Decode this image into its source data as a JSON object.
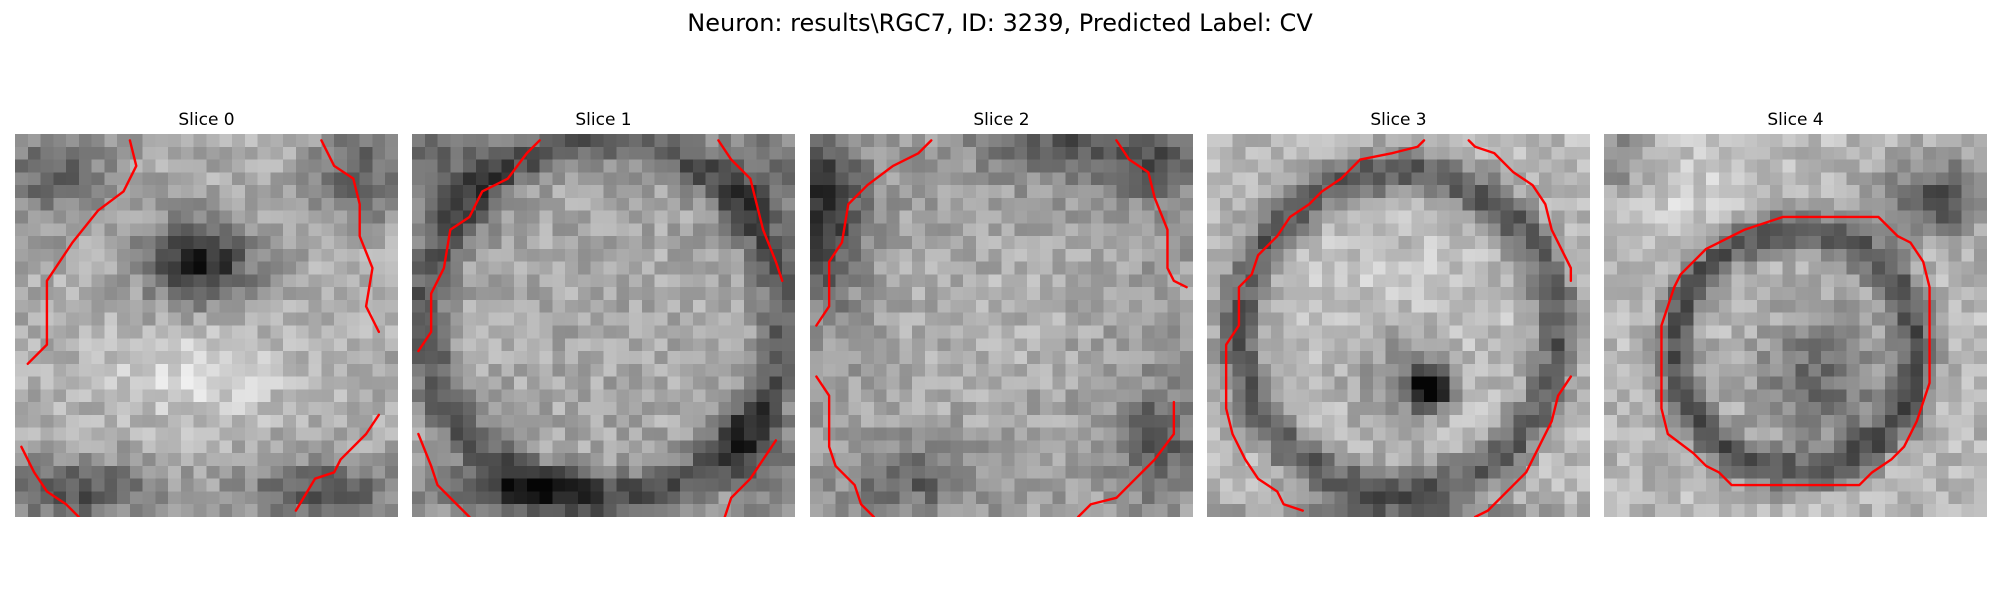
{
  "figure": {
    "title": "Neuron: results\\RGC7, ID: 3239, Predicted Label: CV",
    "contour_color": "#ff0000",
    "colormap": "gray",
    "grid_size": 28
  },
  "slices": [
    {
      "title": "Slice 0",
      "darkness": "Dark nucleus-like blob near upper center; broad bright band in the lower middle.",
      "contours": [
        [
          [
            1.0,
            18.0
          ],
          [
            2.5,
            16.5
          ],
          [
            2.5,
            11.5
          ],
          [
            4.5,
            8.5
          ],
          [
            6.5,
            6.0
          ],
          [
            8.5,
            4.5
          ],
          [
            9.5,
            2.5
          ],
          [
            9.0,
            0.5
          ]
        ],
        [
          [
            24.0,
            0.5
          ],
          [
            25.0,
            2.5
          ],
          [
            26.5,
            3.5
          ],
          [
            27.0,
            5.5
          ],
          [
            27.0,
            8.0
          ],
          [
            28.0,
            10.5
          ],
          [
            27.5,
            13.5
          ],
          [
            28.5,
            15.5
          ]
        ],
        [
          [
            0.5,
            24.5
          ],
          [
            1.5,
            26.5
          ],
          [
            2.5,
            28.0
          ],
          [
            4.0,
            29.0
          ],
          [
            5.0,
            30.0
          ]
        ],
        [
          [
            28.5,
            22.0
          ],
          [
            27.5,
            23.5
          ],
          [
            25.5,
            25.5
          ],
          [
            25.0,
            26.5
          ],
          [
            23.5,
            27.0
          ],
          [
            22.0,
            29.5
          ]
        ]
      ]
    },
    {
      "title": "Slice 1",
      "darkness": "Mostly uniform mid-grey interior with a darker rim along the left and bottom.",
      "contours": [
        [
          [
            0.5,
            17.0
          ],
          [
            1.5,
            15.5
          ],
          [
            1.5,
            12.5
          ],
          [
            2.5,
            10.5
          ],
          [
            3.0,
            7.5
          ],
          [
            4.5,
            6.5
          ],
          [
            5.5,
            4.5
          ],
          [
            7.5,
            3.5
          ],
          [
            9.0,
            1.5
          ],
          [
            10.0,
            0.5
          ]
        ],
        [
          [
            24.0,
            0.5
          ],
          [
            25.0,
            2.0
          ],
          [
            26.5,
            3.5
          ],
          [
            27.0,
            5.5
          ],
          [
            27.5,
            7.5
          ],
          [
            28.5,
            10.0
          ],
          [
            29.0,
            11.5
          ]
        ],
        [
          [
            0.5,
            23.5
          ],
          [
            1.5,
            26.0
          ],
          [
            2.0,
            27.5
          ],
          [
            3.5,
            29.0
          ],
          [
            4.5,
            30.0
          ]
        ],
        [
          [
            28.5,
            24.0
          ],
          [
            27.5,
            25.5
          ],
          [
            26.5,
            27.0
          ],
          [
            25.0,
            28.5
          ],
          [
            24.5,
            30.0
          ]
        ]
      ]
    },
    {
      "title": "Slice 2",
      "darkness": "Noisy textured grey interior with dark pixels clustered along the upper-left corner.",
      "contours": [
        [
          [
            0.5,
            15.0
          ],
          [
            1.5,
            13.5
          ],
          [
            1.5,
            10.0
          ],
          [
            2.5,
            8.5
          ],
          [
            3.0,
            5.5
          ],
          [
            4.5,
            4.0
          ],
          [
            6.5,
            2.5
          ],
          [
            8.5,
            1.5
          ],
          [
            9.5,
            0.5
          ]
        ],
        [
          [
            24.0,
            0.5
          ],
          [
            25.0,
            2.0
          ],
          [
            26.5,
            3.0
          ],
          [
            27.0,
            5.0
          ],
          [
            28.0,
            7.5
          ],
          [
            28.0,
            10.5
          ],
          [
            28.5,
            11.5
          ],
          [
            29.5,
            12.0
          ]
        ],
        [
          [
            0.5,
            19.0
          ],
          [
            1.5,
            20.5
          ],
          [
            1.5,
            24.5
          ],
          [
            2.0,
            26.0
          ],
          [
            3.5,
            27.5
          ],
          [
            4.0,
            29.0
          ],
          [
            5.0,
            30.0
          ]
        ],
        [
          [
            28.5,
            21.0
          ],
          [
            28.5,
            23.5
          ],
          [
            27.0,
            25.5
          ],
          [
            25.5,
            27.0
          ],
          [
            24.0,
            28.5
          ],
          [
            22.0,
            29.0
          ],
          [
            21.0,
            30.0
          ]
        ]
      ]
    },
    {
      "title": "Slice 3",
      "darkness": "Bright round interior enclosed by a darker ring; small very dark spot below center.",
      "contours": [
        [
          [
            17.0,
            0.5
          ],
          [
            16.5,
            1.0
          ],
          [
            14.5,
            1.5
          ],
          [
            12.0,
            2.0
          ],
          [
            10.5,
            3.5
          ],
          [
            9.0,
            4.5
          ],
          [
            8.0,
            5.5
          ],
          [
            6.5,
            6.5
          ],
          [
            5.5,
            8.0
          ],
          [
            4.0,
            9.5
          ],
          [
            3.5,
            11.0
          ],
          [
            2.5,
            12.0
          ],
          [
            2.5,
            15.0
          ],
          [
            1.5,
            16.5
          ],
          [
            1.5,
            21.5
          ],
          [
            2.0,
            23.5
          ],
          [
            3.0,
            25.5
          ],
          [
            4.0,
            27.0
          ],
          [
            5.5,
            28.0
          ],
          [
            6.0,
            29.0
          ],
          [
            7.5,
            29.5
          ]
        ],
        [
          [
            20.5,
            0.5
          ],
          [
            21.0,
            1.0
          ],
          [
            22.5,
            1.5
          ],
          [
            24.0,
            3.0
          ],
          [
            25.5,
            4.0
          ],
          [
            26.5,
            5.5
          ],
          [
            27.0,
            7.5
          ],
          [
            28.5,
            10.5
          ],
          [
            28.5,
            11.5
          ]
        ],
        [
          [
            28.5,
            19.0
          ],
          [
            27.5,
            20.5
          ],
          [
            27.0,
            22.5
          ],
          [
            26.0,
            24.5
          ],
          [
            25.0,
            26.5
          ],
          [
            24.0,
            27.5
          ],
          [
            22.0,
            29.5
          ],
          [
            21.0,
            30.0
          ]
        ]
      ]
    },
    {
      "title": "Slice 4",
      "darkness": "Bright speckled surroundings with a darker ring inside the closed outline.",
      "contours": [
        [
          [
            15.5,
            6.5
          ],
          [
            21.5,
            6.5
          ],
          [
            22.0,
            7.0
          ],
          [
            23.0,
            8.0
          ],
          [
            24.0,
            8.5
          ],
          [
            25.0,
            10.0
          ],
          [
            25.5,
            12.0
          ],
          [
            25.5,
            19.5
          ],
          [
            25.0,
            21.0
          ],
          [
            24.5,
            22.5
          ],
          [
            23.5,
            24.5
          ],
          [
            22.5,
            25.5
          ],
          [
            21.0,
            26.5
          ],
          [
            20.0,
            27.5
          ],
          [
            10.0,
            27.5
          ],
          [
            9.0,
            26.5
          ],
          [
            8.0,
            26.0
          ],
          [
            7.0,
            25.0
          ],
          [
            5.0,
            23.5
          ],
          [
            4.5,
            21.5
          ],
          [
            4.5,
            15.0
          ],
          [
            5.0,
            13.5
          ],
          [
            5.5,
            12.0
          ],
          [
            6.0,
            11.0
          ],
          [
            7.0,
            10.0
          ],
          [
            8.0,
            9.0
          ],
          [
            9.0,
            8.5
          ],
          [
            10.0,
            8.0
          ],
          [
            11.0,
            7.5
          ],
          [
            12.5,
            7.0
          ],
          [
            14.0,
            6.5
          ],
          [
            15.5,
            6.5
          ]
        ]
      ]
    }
  ]
}
